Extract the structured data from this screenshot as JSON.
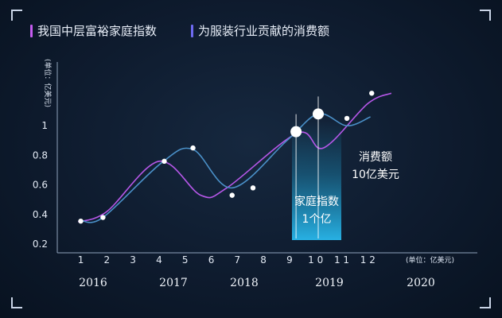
{
  "legend": [
    {
      "label": "我国中层富裕家庭指数",
      "color": "#c65cf0"
    },
    {
      "label": "为服装行业贡献的消费额",
      "color": "#6e6af0"
    }
  ],
  "chart_data": {
    "type": "line",
    "ylabel": "(单位：亿美元)",
    "xunit": "(单位：亿美元)",
    "ylim": [
      0.2,
      1.2
    ],
    "yticks": [
      0.2,
      0.4,
      0.6,
      0.8,
      1
    ],
    "ytick_labels": [
      "0.2",
      "0.4",
      "0.6",
      "0.8",
      "1"
    ],
    "x_ticks": [
      "1",
      "2",
      "3",
      "4",
      "5",
      "6",
      "7",
      "8",
      "9",
      "1 0",
      "1 1",
      "1 2"
    ],
    "years": [
      "2016",
      "2017",
      "2018",
      "2019",
      "2020"
    ],
    "series": [
      {
        "name": "我国中层富裕家庭指数",
        "color": "#b657e8",
        "x": [
          0.9,
          2,
          4,
          5.6,
          6.6,
          9.3,
          10.3,
          12,
          12.9
        ],
        "y": [
          0.35,
          0.42,
          0.76,
          0.53,
          0.58,
          0.95,
          0.85,
          1.15,
          1.22
        ]
      },
      {
        "name": "为服装行业贡献的消费额",
        "color": "#4a90c8",
        "x": [
          1,
          1.85,
          4.1,
          5.3,
          6.8,
          8.9,
          10.1,
          11.2,
          12.1
        ],
        "y": [
          0.36,
          0.38,
          0.75,
          0.84,
          0.58,
          0.9,
          1.08,
          1.0,
          1.06
        ]
      }
    ],
    "markers": [
      {
        "x": 1.0,
        "y": 0.355
      },
      {
        "x": 1.85,
        "y": 0.38
      },
      {
        "x": 4.2,
        "y": 0.76
      },
      {
        "x": 5.3,
        "y": 0.85
      },
      {
        "x": 6.8,
        "y": 0.53
      },
      {
        "x": 7.6,
        "y": 0.58
      },
      {
        "x": 11.2,
        "y": 1.05
      },
      {
        "x": 12.15,
        "y": 1.22
      }
    ],
    "highlights": [
      {
        "x": 9.25,
        "y": 0.96
      },
      {
        "x": 10.1,
        "y": 1.08
      }
    ],
    "annotations": {
      "household": [
        "家庭指数",
        "1个亿"
      ],
      "consumption": [
        "消费额",
        "10亿美元"
      ]
    }
  }
}
